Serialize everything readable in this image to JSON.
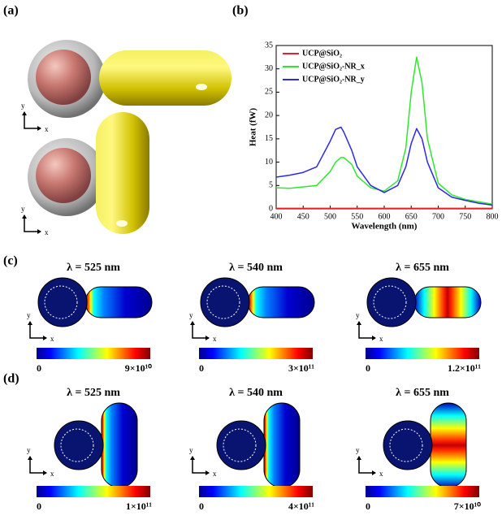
{
  "panel_labels": [
    "(a)",
    "(b)",
    "(c)",
    "(d)"
  ],
  "axis_names": {
    "x": "x",
    "y": "y"
  },
  "chart_data": {
    "type": "line",
    "x_label": "Wavelength (nm)",
    "y_label": "Heat (fW)",
    "x": [
      400,
      425,
      450,
      475,
      500,
      510,
      520,
      525,
      540,
      550,
      575,
      600,
      625,
      640,
      650,
      660,
      670,
      680,
      700,
      725,
      750,
      775,
      800
    ],
    "series": [
      {
        "name": "UCP@SiO₂",
        "color": "#e8202a",
        "values": [
          0.1,
          0.1,
          0.1,
          0.1,
          0.1,
          0.1,
          0.1,
          0.1,
          0.1,
          0.1,
          0.1,
          0.1,
          0.1,
          0.1,
          0.1,
          0.1,
          0.1,
          0.1,
          0.1,
          0.1,
          0.1,
          0.1,
          0.1
        ]
      },
      {
        "name": "UCP@SiO₂-NR_x",
        "color": "#2ee82e",
        "values": [
          4.5,
          4.4,
          4.7,
          5.0,
          8.0,
          10.0,
          11.0,
          11.0,
          9.5,
          7.0,
          4.5,
          3.8,
          6.0,
          13.0,
          25.0,
          32.5,
          27.0,
          15.0,
          5.5,
          3.0,
          2.0,
          1.5,
          1.0
        ]
      },
      {
        "name": "UCP@SiO₂-NR_y",
        "color": "#2a2ae8",
        "values": [
          6.8,
          7.2,
          7.8,
          9.0,
          14.5,
          17.0,
          17.5,
          16.5,
          12.5,
          9.0,
          5.0,
          3.5,
          5.0,
          9.0,
          14.0,
          17.2,
          15.0,
          10.0,
          4.5,
          2.5,
          1.8,
          1.2,
          0.8
        ]
      }
    ],
    "xlim": [
      400,
      800
    ],
    "ylim": [
      0,
      35
    ],
    "xticks": [
      400,
      450,
      500,
      550,
      600,
      650,
      700,
      750,
      800
    ],
    "yticks": [
      0,
      5,
      10,
      15,
      20,
      25,
      30,
      35
    ],
    "legend": "upper-left"
  },
  "field_maps": {
    "c": [
      {
        "title": "λ = 525 nm",
        "min": "0",
        "max": "9×10¹⁰"
      },
      {
        "title": "λ = 540 nm",
        "min": "0",
        "max": "3×10¹¹"
      },
      {
        "title": "λ = 655 nm",
        "min": "0",
        "max": "1.2×10¹¹"
      }
    ],
    "d": [
      {
        "title": "λ = 525 nm",
        "min": "0",
        "max": "1×10¹¹"
      },
      {
        "title": "λ = 540 nm",
        "min": "0",
        "max": "4×10¹¹"
      },
      {
        "title": "λ = 655 nm",
        "min": "0",
        "max": "7×10¹⁰"
      }
    ]
  }
}
